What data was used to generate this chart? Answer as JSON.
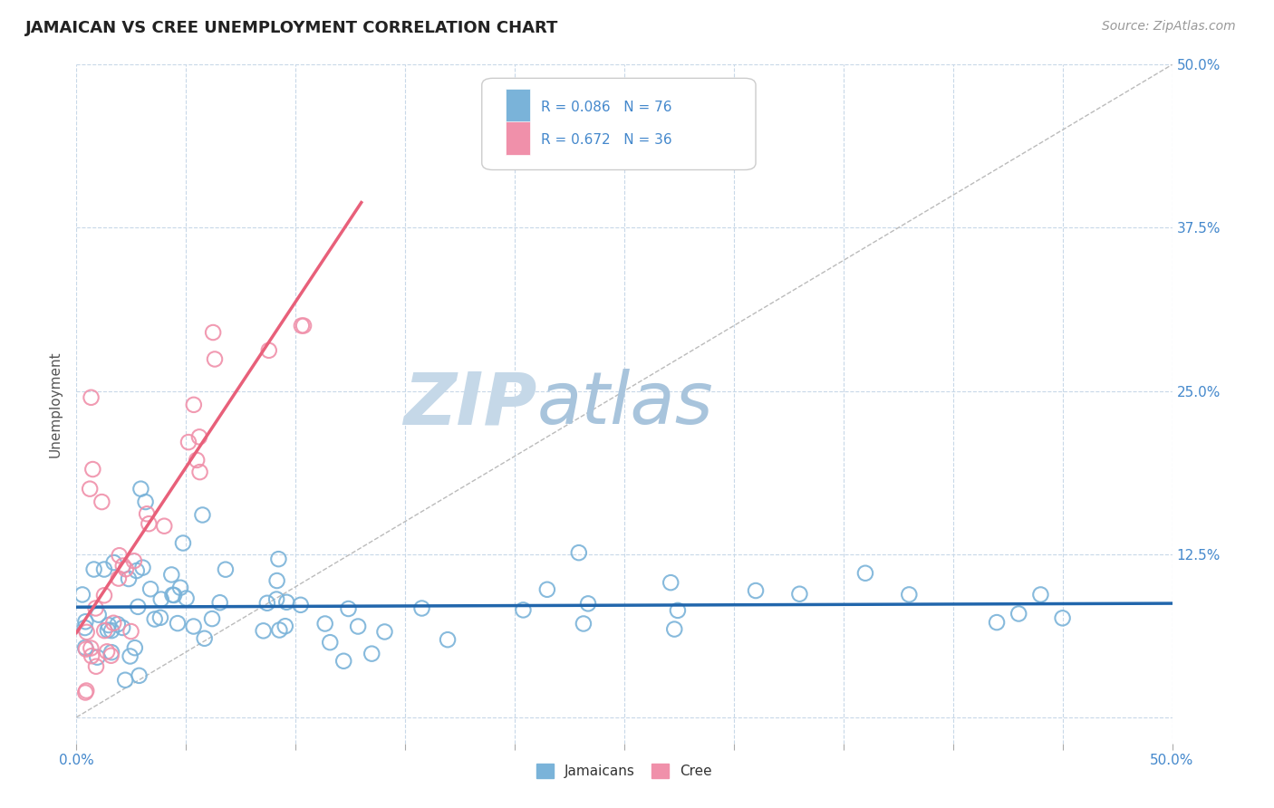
{
  "title": "JAMAICAN VS CREE UNEMPLOYMENT CORRELATION CHART",
  "source": "Source: ZipAtlas.com",
  "ylabel": "Unemployment",
  "xlim": [
    0.0,
    0.5
  ],
  "ylim": [
    -0.02,
    0.5
  ],
  "ytick_positions": [
    0.0,
    0.125,
    0.25,
    0.375,
    0.5
  ],
  "ytick_labels": [
    "",
    "12.5%",
    "25.0%",
    "37.5%",
    "50.0%"
  ],
  "jamaican_color": "#7ab3d9",
  "cree_color": "#f090aa",
  "jamaican_line_color": "#2166ac",
  "cree_line_color": "#e8607a",
  "diagonal_color": "#bbbbbb",
  "grid_color": "#c8d8e8",
  "background_color": "#ffffff",
  "title_color": "#222222",
  "axis_label_color": "#4488cc",
  "watermark_color_zip": "#c8d8ea",
  "watermark_color_atlas": "#a8c4e0",
  "legend_r_j": "R = 0.086",
  "legend_n_j": "N = 76",
  "legend_r_c": "R = 0.672",
  "legend_n_c": "N = 36"
}
